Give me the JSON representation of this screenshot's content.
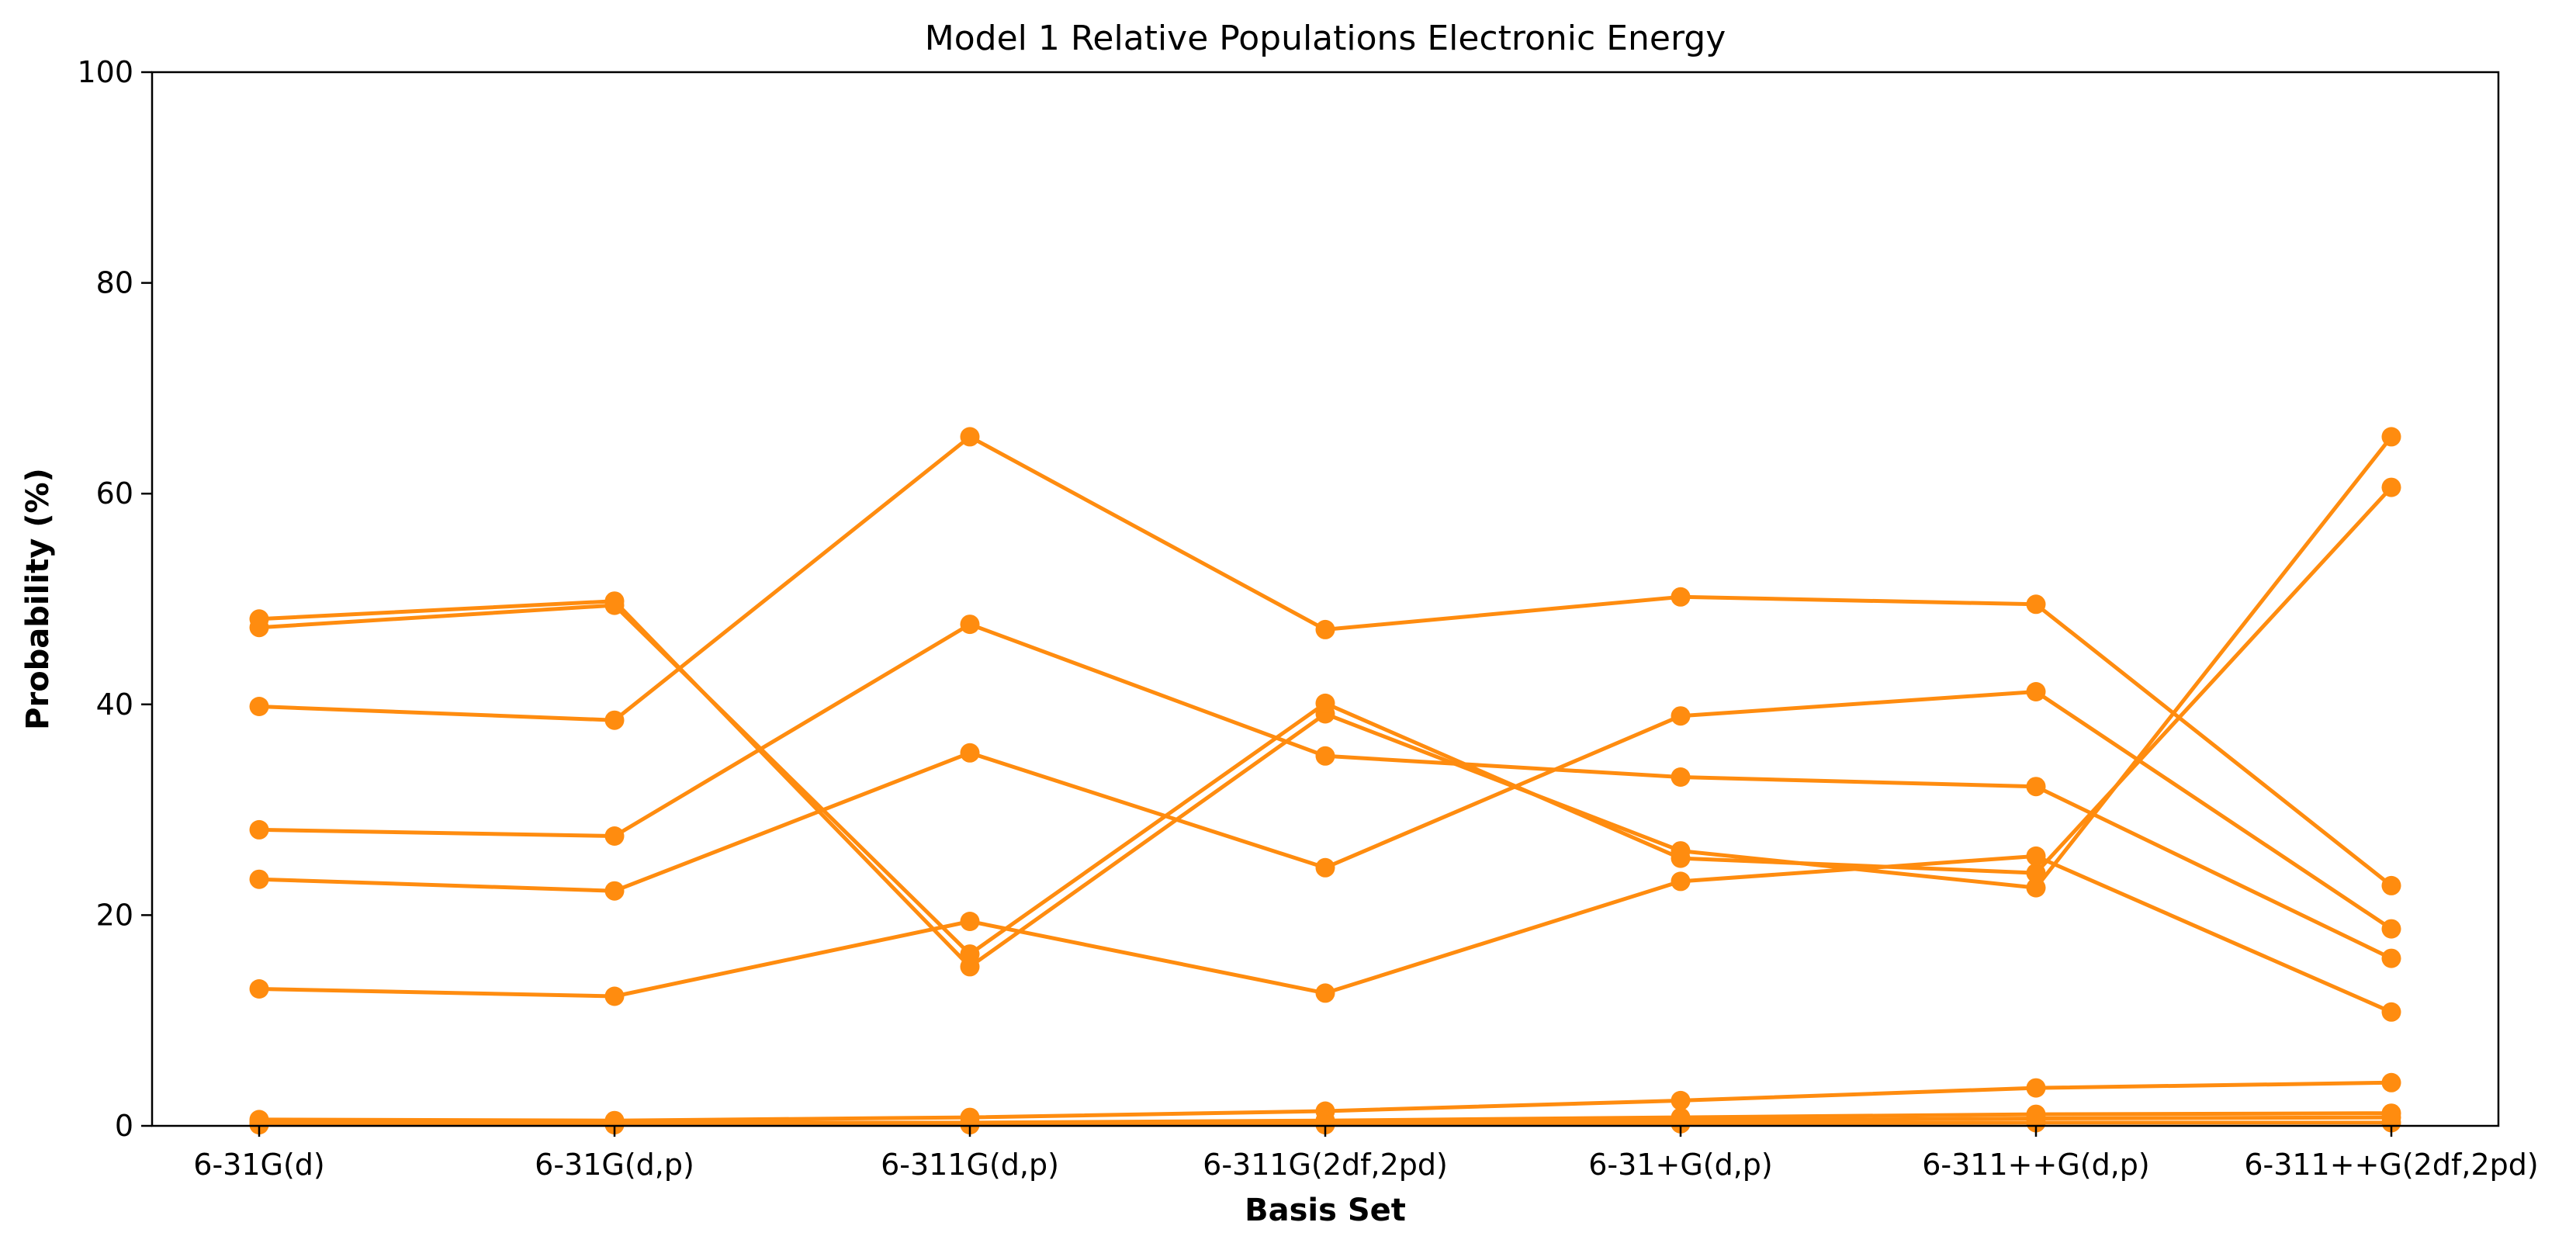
{
  "chart_data": {
    "type": "line",
    "title": "Model 1 Relative Populations Electronic Energy",
    "xlabel": "Basis Set",
    "ylabel": "Probability (%)",
    "categories": [
      "6-31G(d)",
      "6-31G(d,p)",
      "6-311G(d,p)",
      "6-311G(2df,2pd)",
      "6-31+G(d,p)",
      "6-311++G(d,p)",
      "6-311++G(2df,2pd)"
    ],
    "ylim": [
      0,
      100
    ],
    "yticks": [
      0,
      20,
      40,
      60,
      80,
      100
    ],
    "grid": false,
    "color": "#ff8c0f",
    "series": [
      {
        "values": [
          48.1,
          49.8,
          15.1,
          39.1,
          26.1,
          22.6,
          65.4
        ]
      },
      {
        "values": [
          47.3,
          49.4,
          16.3,
          40.1,
          25.4,
          24.0,
          60.6
        ]
      },
      {
        "values": [
          39.8,
          38.5,
          65.4,
          47.1,
          50.2,
          49.5,
          22.8
        ]
      },
      {
        "values": [
          28.1,
          27.5,
          47.6,
          35.1,
          33.1,
          32.2,
          15.9
        ]
      },
      {
        "values": [
          23.4,
          22.3,
          35.4,
          24.5,
          38.9,
          41.2,
          18.7
        ]
      },
      {
        "values": [
          13.0,
          12.3,
          19.4,
          12.6,
          23.2,
          25.6,
          10.8
        ]
      },
      {
        "values": [
          0.6,
          0.5,
          0.8,
          1.4,
          2.4,
          3.6,
          4.1
        ]
      },
      {
        "values": [
          0.4,
          0.3,
          0.3,
          0.5,
          0.8,
          1.1,
          1.2
        ]
      },
      {
        "values": [
          0.2,
          0.2,
          0.2,
          0.3,
          0.5,
          0.7,
          0.8
        ]
      },
      {
        "values": [
          0.1,
          0.1,
          0.1,
          0.1,
          0.2,
          0.3,
          0.3
        ]
      }
    ]
  }
}
